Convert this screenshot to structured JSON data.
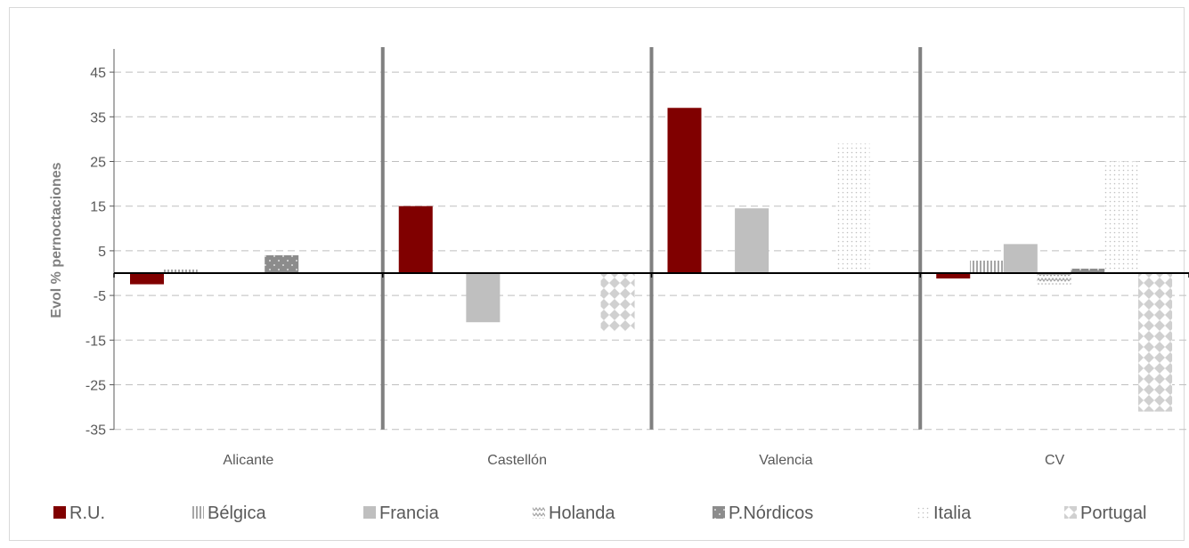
{
  "chart_data": {
    "type": "bar",
    "ylabel": "Evol % pernoctaciones",
    "xlabel": "",
    "ylim": [
      -35,
      50
    ],
    "yticks": [
      -35,
      -25,
      -15,
      -5,
      5,
      15,
      25,
      35,
      45
    ],
    "grid": true,
    "legend_position": "bottom",
    "categories": [
      "Alicante",
      "Castellón",
      "Valencia",
      "CV"
    ],
    "series": [
      {
        "name": "R.U.",
        "values": [
          -2.5,
          15,
          37,
          -1.2
        ],
        "color": "#800000",
        "pattern": "solid"
      },
      {
        "name": "Bélgica",
        "values": [
          0.8,
          0,
          0,
          2.8
        ],
        "color": "#bfbfbf",
        "pattern": "vertical-lines"
      },
      {
        "name": "Francia",
        "values": [
          0,
          -11,
          14.5,
          6.5
        ],
        "color": "#bfbfbf",
        "pattern": "solid"
      },
      {
        "name": "Holanda",
        "values": [
          0,
          0,
          0,
          -2.5
        ],
        "color": "#bfbfbf",
        "pattern": "waves"
      },
      {
        "name": "P.Nórdicos",
        "values": [
          4,
          0,
          0,
          1
        ],
        "color": "#8c8c8c",
        "pattern": "dots-on-gray"
      },
      {
        "name": "Italia",
        "values": [
          0,
          0,
          29,
          25
        ],
        "color": "#bfbfbf",
        "pattern": "sparse-dots"
      },
      {
        "name": "Portugal",
        "values": [
          0,
          -13,
          0,
          -31
        ],
        "color": "#d9d9d9",
        "pattern": "diamonds"
      }
    ]
  }
}
